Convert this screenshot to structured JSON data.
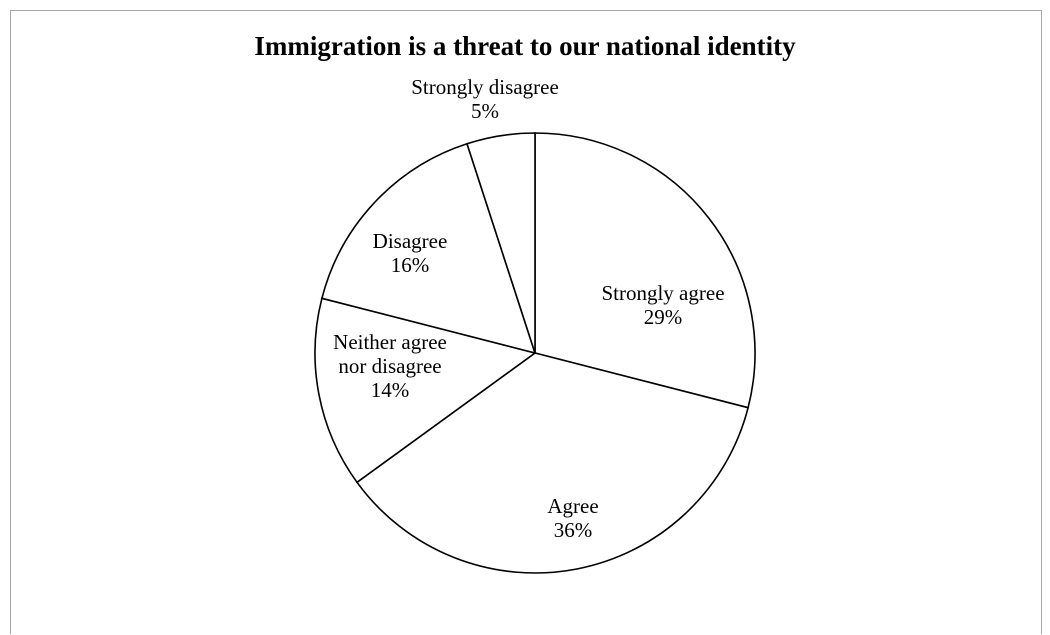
{
  "chart_data": {
    "type": "pie",
    "title": "Immigration is a threat to our national identity",
    "start_angle_deg": 0,
    "direction": "clockwise",
    "slices": [
      {
        "label_lines": [
          "Strongly agree"
        ],
        "percent_label": "29%",
        "value": 29
      },
      {
        "label_lines": [
          "Agree"
        ],
        "percent_label": "36%",
        "value": 36
      },
      {
        "label_lines": [
          "Neither agree",
          "nor disagree"
        ],
        "percent_label": "14%",
        "value": 14
      },
      {
        "label_lines": [
          "Disagree"
        ],
        "percent_label": "16%",
        "value": 16
      },
      {
        "label_lines": [
          "Strongly disagree"
        ],
        "percent_label": "5%",
        "value": 5
      }
    ],
    "legend": "none",
    "colors": {
      "fill": "#ffffff",
      "stroke": "#000000"
    }
  }
}
